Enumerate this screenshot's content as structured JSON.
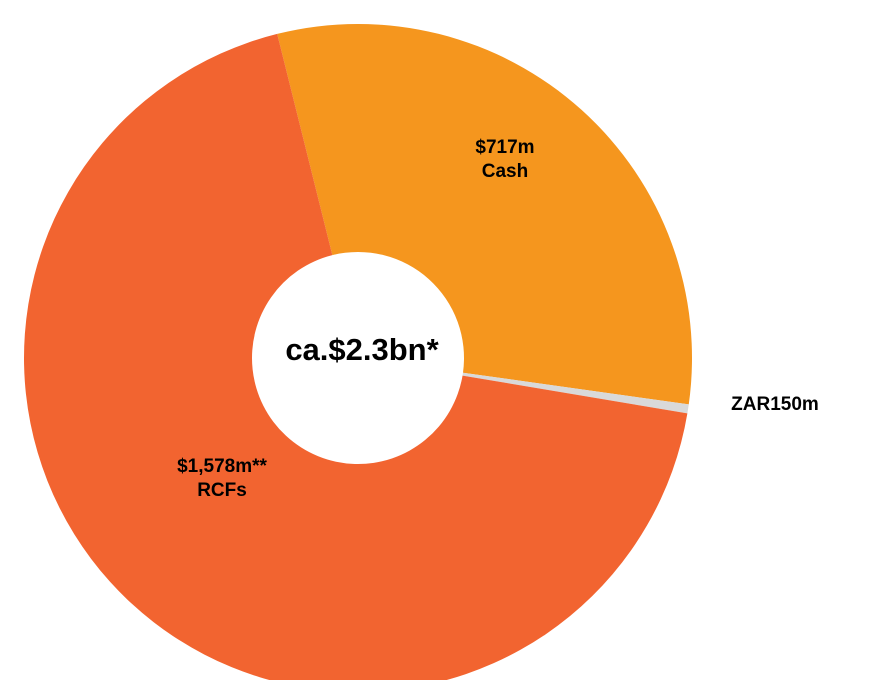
{
  "chart_data": {
    "type": "donut",
    "center_label": "ca.$2.3bn*",
    "categories": [
      "Cash",
      null,
      "RCFs"
    ],
    "values": [
      717,
      10,
      1578
    ],
    "value_labels": [
      "$717m",
      "ZAR150m",
      "$1,578m**"
    ],
    "colors": [
      "#f5961e",
      "#d9d9d9",
      "#f26430"
    ]
  }
}
